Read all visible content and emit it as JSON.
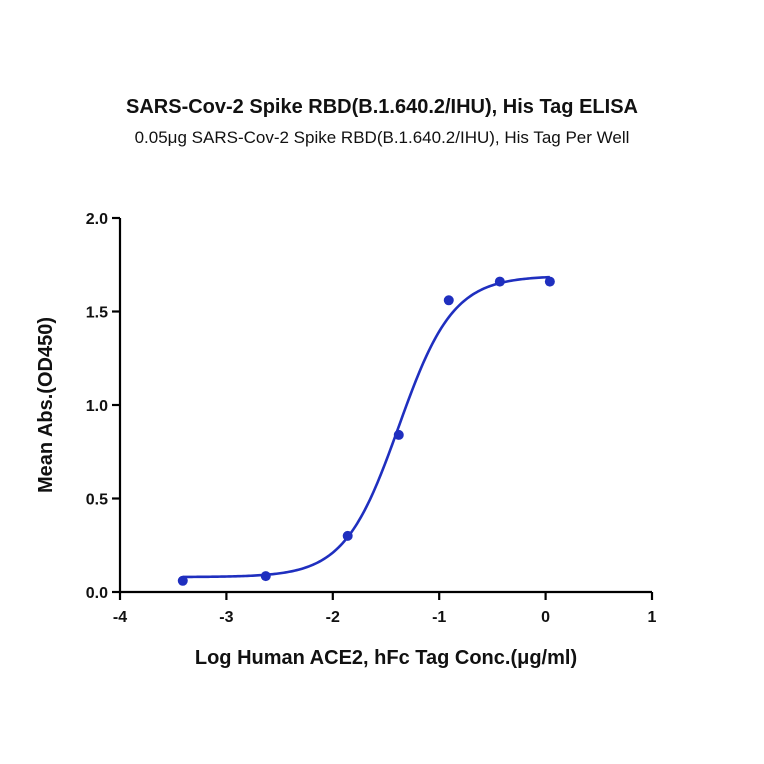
{
  "chart_data": {
    "type": "scatter",
    "title": "SARS-Cov-2 Spike RBD(B.1.640.2/IHU), His Tag ELISA",
    "subtitle": "0.05μg SARS-Cov-2 Spike RBD(B.1.640.2/IHU), His Tag Per Well",
    "xlabel": "Log Human ACE2, hFc Tag Conc.(μg/ml)",
    "ylabel": "Mean Abs.(OD450)",
    "xlim": [
      -4,
      1
    ],
    "ylim": [
      0.0,
      2.0
    ],
    "x_ticks": [
      "-4",
      "-3",
      "-2",
      "-1",
      "0",
      "1"
    ],
    "y_ticks": [
      "0.0",
      "0.5",
      "1.0",
      "1.5",
      "2.0"
    ],
    "grid": false,
    "color": "#1f2fbf",
    "series": [
      {
        "x": [
          -3.41,
          -2.63,
          -1.86,
          -1.38,
          -0.91,
          -0.43,
          0.04
        ],
        "y": [
          0.06,
          0.085,
          0.3,
          0.84,
          1.56,
          1.66,
          1.66
        ]
      }
    ],
    "fit": {
      "model": "4PL",
      "bottom": 0.08,
      "top": 1.69,
      "log_ec50": -1.38,
      "hill_slope": 1.7
    }
  }
}
